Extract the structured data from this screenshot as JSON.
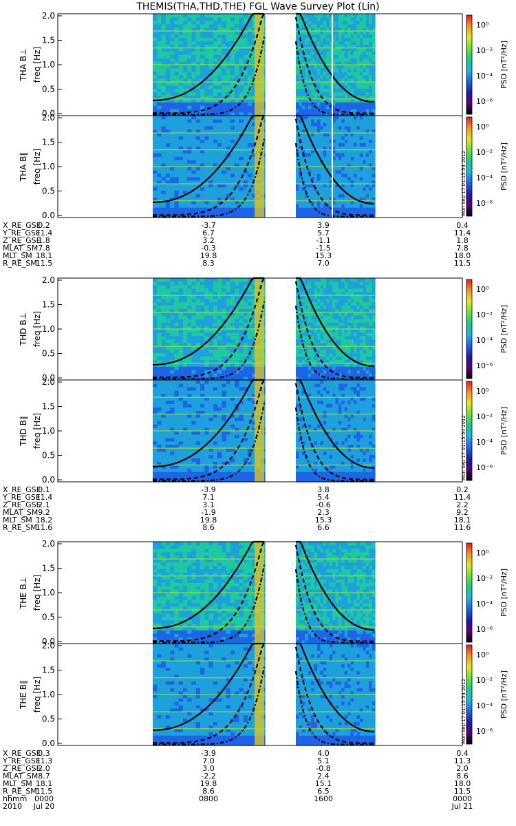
{
  "title": "THEMIS(THA,THD,THE) FGL Wave Survey Plot (Lin)",
  "colorbar": {
    "label": "PSD [nT²/Hz]",
    "ticks": [
      "10⁰",
      "10⁻²",
      "10⁻⁴",
      "10⁻⁶"
    ],
    "stops": [
      "#000000",
      "#5a0078",
      "#1e1ea0",
      "#1e64e6",
      "#1eb4e6",
      "#1ec88c",
      "#64e632",
      "#e6e61e",
      "#f0961e",
      "#e61e1e"
    ]
  },
  "stamp": "Mon Sep 17 01:15:54 2012",
  "freq_axis": {
    "ylabel": "freq [Hz]",
    "ticks": [
      "0.0",
      "0.5",
      "1.0",
      "1.5",
      "2.0"
    ],
    "ylim": [
      0,
      2.0
    ]
  },
  "chart_data": [
    {
      "type": "heatmap",
      "probe": "THA",
      "panels": [
        {
          "label": "THA B⊥",
          "component": "perp"
        },
        {
          "label": "THA B∥",
          "component": "par"
        }
      ],
      "ephemeris": {
        "labels": [
          "X_RE_GSE",
          "Y_RE_GSE",
          "Z_RE_GSE",
          "MLAT_SM",
          "MLT_SM",
          "R_RE_SM"
        ],
        "values": [
          [
            "0.2",
            "-3.7",
            "3.9",
            "0.4"
          ],
          [
            "11.4",
            "6.7",
            "5.7",
            "11.4"
          ],
          [
            "1.8",
            "3.2",
            "-1.1",
            "1.8"
          ],
          [
            "7.8",
            "-0.3",
            "-1.5",
            "7.8"
          ],
          [
            "18.1",
            "19.8",
            "15.3",
            "18.0"
          ],
          [
            "11.5",
            "8.3",
            "7.0",
            "11.5"
          ]
        ]
      }
    },
    {
      "type": "heatmap",
      "probe": "THD",
      "panels": [
        {
          "label": "THD B⊥",
          "component": "perp"
        },
        {
          "label": "THD B∥",
          "component": "par"
        }
      ],
      "ephemeris": {
        "labels": [
          "X_RE_GSE",
          "Y_RE_GSE",
          "Z_RE_GSE",
          "MLAT_SM",
          "MLT_SM",
          "R_RE_SM"
        ],
        "values": [
          [
            "0.1",
            "-3.9",
            "3.8",
            "0.2"
          ],
          [
            "11.4",
            "7.1",
            "5.4",
            "11.4"
          ],
          [
            "2.1",
            "3.1",
            "-0.6",
            "2.2"
          ],
          [
            "9.2",
            "-1.9",
            "2.3",
            "9.2"
          ],
          [
            "18.2",
            "19.8",
            "15.3",
            "18.1"
          ],
          [
            "11.6",
            "8.6",
            "6.6",
            "11.6"
          ]
        ]
      }
    },
    {
      "type": "heatmap",
      "probe": "THE",
      "panels": [
        {
          "label": "THE B⊥",
          "component": "perp"
        },
        {
          "label": "THE B∥",
          "component": "par"
        }
      ],
      "ephemeris": {
        "labels": [
          "X_RE_GSE",
          "Y_RE_GSE",
          "Z_RE_GSE",
          "MLAT_SM",
          "MLT_SM",
          "R_RE_SM",
          "hhmm",
          "2010"
        ],
        "values": [
          [
            "0.3",
            "-3.9",
            "4.0",
            "0.4"
          ],
          [
            "11.3",
            "7.0",
            "5.1",
            "11.3"
          ],
          [
            "2.0",
            "3.0",
            "-0.8",
            "2.0"
          ],
          [
            "8.7",
            "-2.2",
            "2.4",
            "8.6"
          ],
          [
            "18.1",
            "19.8",
            "15.1",
            "18.0"
          ],
          [
            "11.5",
            "8.6",
            "6.5",
            "11.5"
          ],
          [
            "0000",
            "0800",
            "1600",
            "0000"
          ],
          [
            "Jul 20",
            "",
            "",
            "Jul 21"
          ]
        ]
      }
    }
  ]
}
